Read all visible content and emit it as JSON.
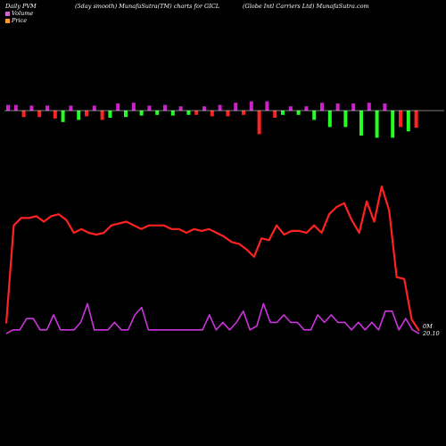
{
  "header": {
    "left": "Daily PVM",
    "middle": "(5day smooth) MunafaSutra(TM) charts for GICL",
    "right": "(Globe  Intl Carriers Ltd) MunafaSutra.com"
  },
  "legend": [
    {
      "label": "Volume",
      "color": "#cc66cc"
    },
    {
      "label": "Price",
      "color": "#ff9933"
    }
  ],
  "colors": {
    "price_line": "#ff2222",
    "volume_line": "#cc33dd",
    "bar_up": "#cc22cc",
    "bar_down_red": "#ff2222",
    "bar_down_green": "#22ff22",
    "baseline": "#ffffff"
  },
  "chart_data": {
    "type": "line",
    "end_labels": {
      "volume": "0M",
      "price": "20.10"
    },
    "price": [
      20.3,
      22.95,
      23.15,
      23.15,
      23.2,
      23.05,
      23.2,
      23.25,
      23.1,
      22.75,
      22.85,
      22.75,
      22.7,
      22.75,
      22.95,
      23.0,
      23.05,
      22.95,
      22.85,
      22.95,
      22.95,
      22.95,
      22.85,
      22.85,
      22.75,
      22.85,
      22.8,
      22.85,
      22.75,
      22.65,
      22.5,
      22.45,
      22.3,
      22.1,
      22.6,
      22.55,
      22.95,
      22.7,
      22.8,
      22.8,
      22.75,
      22.95,
      22.75,
      23.25,
      23.45,
      23.55,
      23.1,
      22.75,
      23.6,
      23.05,
      24.0,
      23.35,
      21.55,
      21.5,
      20.4,
      20.1
    ],
    "volume": [
      0.0,
      0.1,
      0.1,
      0.4,
      0.4,
      0.1,
      0.1,
      0.5,
      0.1,
      0.1,
      0.1,
      0.3,
      0.8,
      0.1,
      0.1,
      0.1,
      0.3,
      0.1,
      0.1,
      0.5,
      0.7,
      0.1,
      0.1,
      0.1,
      0.1,
      0.1,
      0.1,
      0.1,
      0.1,
      0.1,
      0.5,
      0.1,
      0.3,
      0.1,
      0.3,
      0.6,
      0.1,
      0.2,
      0.8,
      0.3,
      0.3,
      0.5,
      0.3,
      0.3,
      0.1,
      0.1,
      0.5,
      0.3,
      0.5,
      0.3,
      0.3,
      0.1,
      0.3,
      0.1,
      0.3,
      0.1,
      0.6,
      0.6,
      0.1,
      0.4,
      0.1,
      0.0
    ],
    "pvm_bars": [
      0.8,
      0.8,
      -0.9,
      0.7,
      -0.9,
      0.7,
      -1.1,
      -1.6,
      0.7,
      -1.3,
      -0.8,
      0.7,
      -1.3,
      -1.0,
      1.0,
      -0.9,
      1.1,
      -0.7,
      0.7,
      -0.6,
      0.8,
      -0.7,
      0.6,
      -0.6,
      -0.6,
      0.6,
      -0.8,
      0.8,
      -0.8,
      1.1,
      -0.6,
      1.3,
      -3.3,
      1.3,
      -1.0,
      -0.6,
      0.6,
      -0.6,
      0.6,
      -1.3,
      1.1,
      -2.3,
      1.0,
      -2.3,
      1.0,
      -3.5,
      1.1,
      -3.8,
      1.0,
      -3.8,
      -2.3,
      -2.9,
      -2.4
    ]
  }
}
